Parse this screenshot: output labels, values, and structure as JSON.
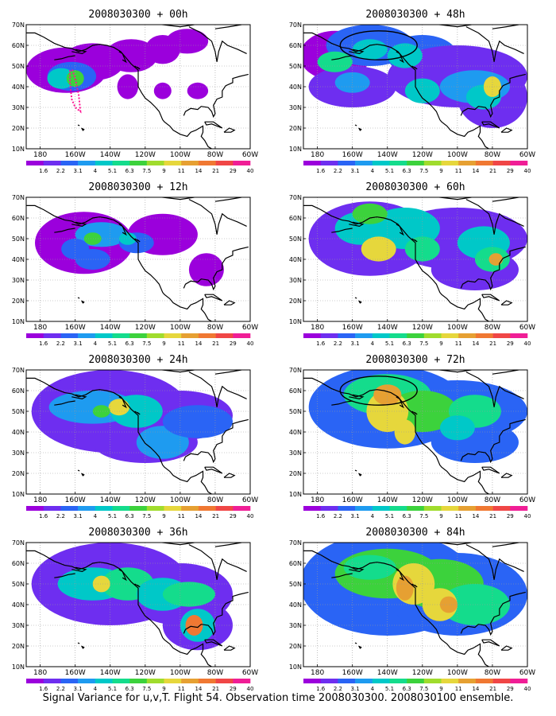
{
  "caption": "Signal Variance for u,v,T. Flight 54. Observation time 2008030300. 2008030100 ensemble.",
  "panel_titles": [
    "2008030300 + 00h",
    "2008030300 + 48h",
    "2008030300 + 12h",
    "2008030300 + 60h",
    "2008030300 + 24h",
    "2008030300 + 72h",
    "2008030300 + 36h",
    "2008030300 + 84h"
  ],
  "map": {
    "lat_labels": [
      "70N",
      "60N",
      "50N",
      "40N",
      "30N",
      "20N",
      "10N"
    ],
    "lat_values": [
      70,
      60,
      50,
      40,
      30,
      20,
      10
    ],
    "lon_labels": [
      "180",
      "160W",
      "140W",
      "120W",
      "100W",
      "80W",
      "60W"
    ],
    "lon_values": [
      180,
      160,
      140,
      120,
      100,
      80,
      60
    ],
    "lon_range_west": [
      188,
      60
    ],
    "lat_range": [
      10,
      70
    ]
  },
  "colorbar": {
    "labels": [
      "1.6",
      "2.2",
      "3.1",
      "4",
      "5.1",
      "6.3",
      "7.5",
      "9",
      "11",
      "14",
      "21",
      "29",
      "40"
    ],
    "colors": [
      "#ffffff",
      "#9b00dc",
      "#6e2ef0",
      "#2a64f5",
      "#1e9bf0",
      "#00c8c8",
      "#14dc8c",
      "#3cd23c",
      "#a0dc2d",
      "#e6d73c",
      "#e6a032",
      "#f07832",
      "#f04646",
      "#f01e96"
    ]
  },
  "colors": {
    "coastline": "#000000",
    "grid": "#999999",
    "flight_track": "#ff1493"
  }
}
